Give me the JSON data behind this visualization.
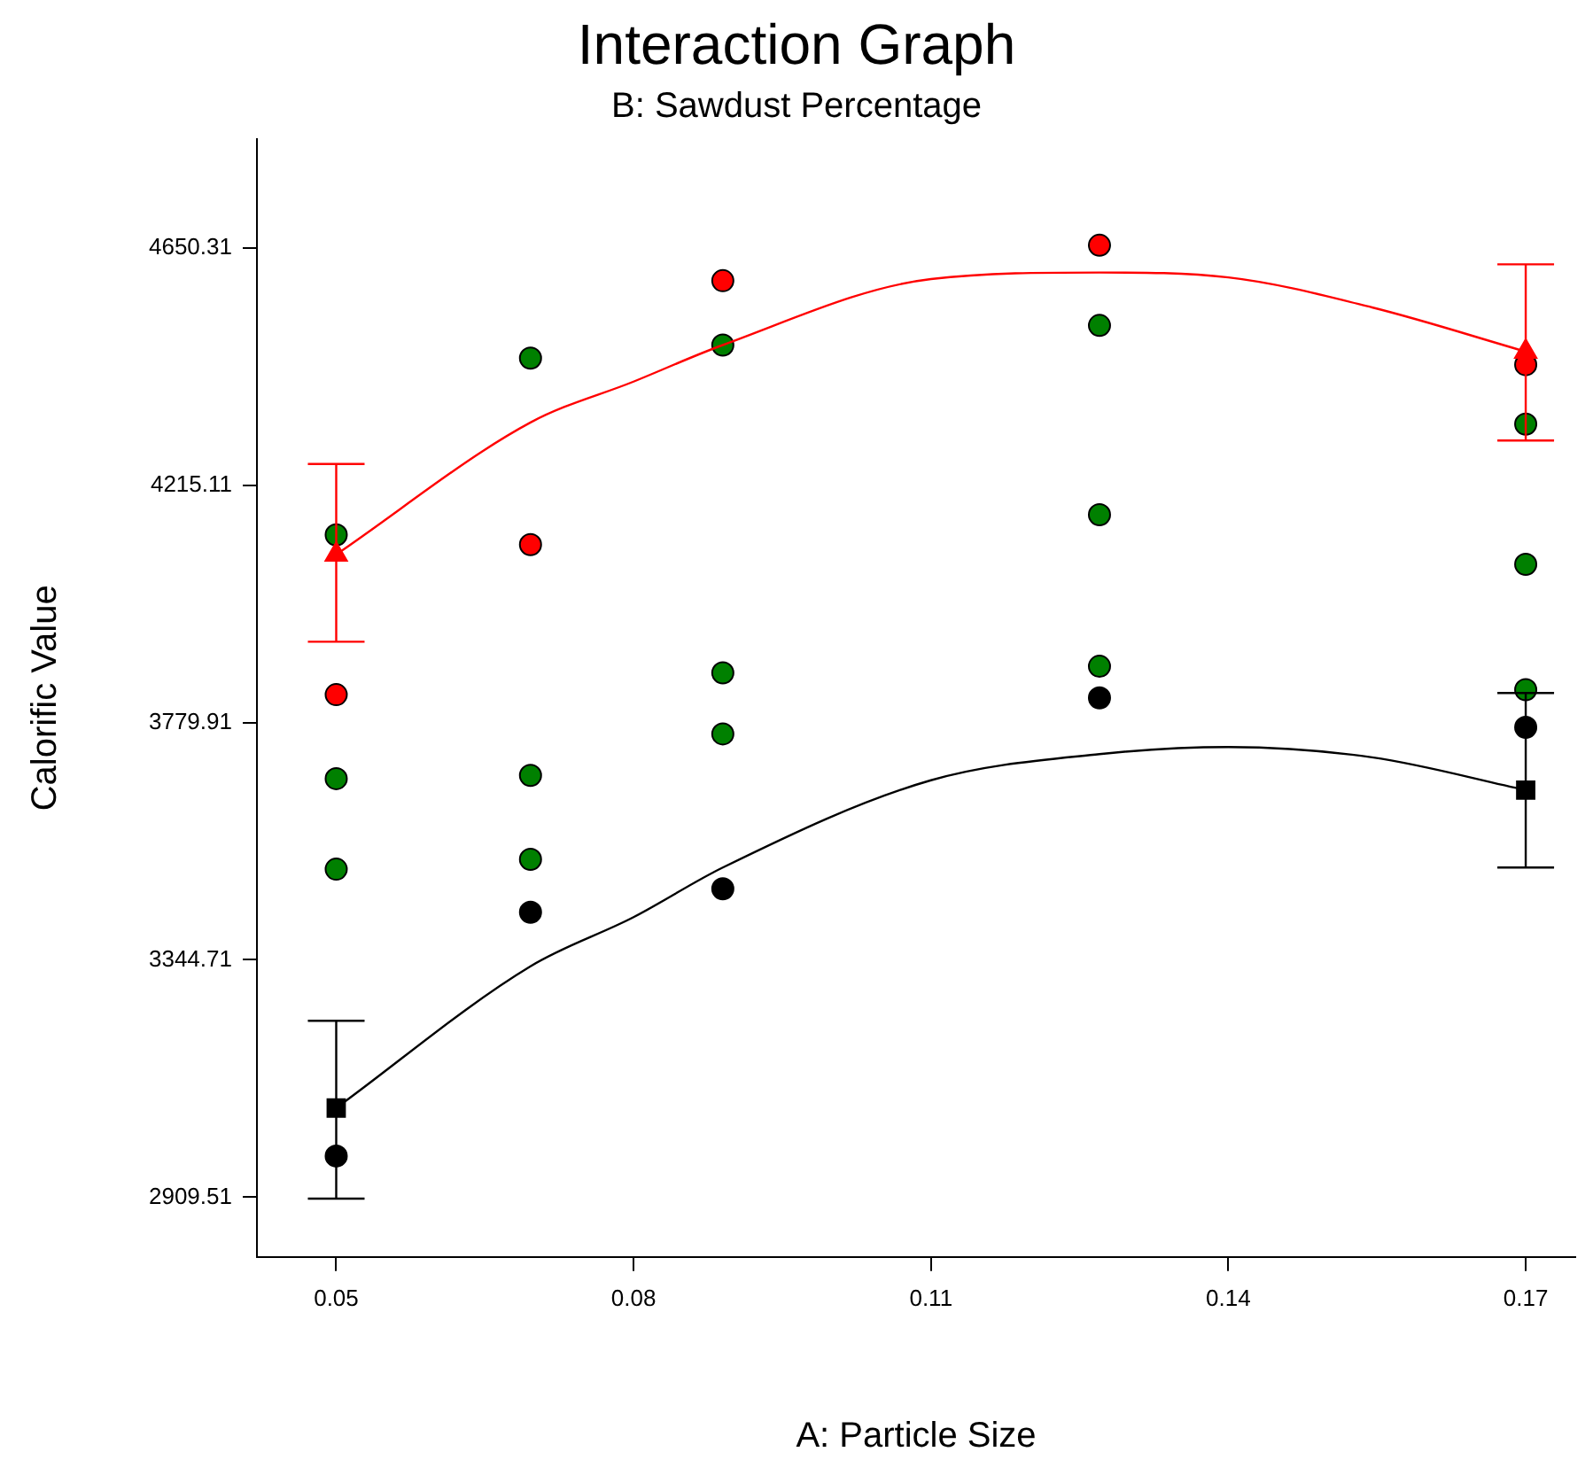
{
  "chart_data": {
    "type": "scatter",
    "title": "Interaction Graph",
    "subtitle": "B: Sawdust Percentage",
    "xlabel": "A: Particle Size",
    "ylabel": "Calorific Value",
    "xlim": [
      0.042,
      0.175
    ],
    "xticks": [
      0.05,
      0.08,
      0.11,
      0.14,
      0.17
    ],
    "ylim": [
      2800,
      4850
    ],
    "yticks": [
      4650.31,
      4215.11,
      3779.91,
      3344.71,
      2909.51
    ],
    "grid": false,
    "legend": false,
    "series": [
      {
        "type": "line",
        "color": "#ff0000",
        "marker": "none",
        "x": [
          0.05,
          0.0696,
          0.08,
          0.089,
          0.11,
          0.127,
          0.14,
          0.1545,
          0.17
        ],
        "values": [
          4088,
          4330,
          4405,
          4472,
          4593,
          4605,
          4596,
          4541,
          4460
        ]
      },
      {
        "type": "line",
        "color": "#000000",
        "marker": "none",
        "x": [
          0.05,
          0.0696,
          0.08,
          0.089,
          0.11,
          0.127,
          0.14,
          0.1545,
          0.17
        ],
        "values": [
          3073,
          3333,
          3423,
          3514,
          3674,
          3722,
          3735,
          3716,
          3656
        ]
      },
      {
        "type": "scatter",
        "color": "#ff0000",
        "marker": "triangle",
        "x": [
          0.05,
          0.17
        ],
        "values": [
          4088,
          4460
        ],
        "errors": [
          [
            3928,
            4254
          ],
          [
            4297,
            4620
          ]
        ]
      },
      {
        "type": "scatter",
        "color": "#000000",
        "marker": "square",
        "x": [
          0.05,
          0.17
        ],
        "values": [
          3073,
          3656
        ],
        "errors": [
          [
            2907,
            3233
          ],
          [
            3514,
            3834
          ]
        ]
      },
      {
        "type": "scatter",
        "color": "#ff0000",
        "marker": "circle",
        "x": [
          0.05,
          0.0696,
          0.089,
          0.127,
          0.17
        ],
        "values": [
          3831,
          4106,
          4590,
          4655,
          4436
        ]
      },
      {
        "type": "scatter",
        "color": "#008000",
        "marker": "circle",
        "x": [
          0.05,
          0.05,
          0.05,
          0.0696,
          0.0696,
          0.0696,
          0.089,
          0.089,
          0.089,
          0.127,
          0.127,
          0.127,
          0.17,
          0.17,
          0.17
        ],
        "values": [
          4124,
          3677,
          3511,
          4448,
          3683,
          3529,
          4472,
          3871,
          3759,
          4508,
          4161,
          3883,
          4327,
          4070,
          3840
        ]
      },
      {
        "type": "scatter",
        "color": "#000000",
        "marker": "circle",
        "x": [
          0.05,
          0.0696,
          0.089,
          0.127,
          0.17
        ],
        "values": [
          2985,
          3432,
          3475,
          3825,
          3771
        ]
      }
    ]
  }
}
